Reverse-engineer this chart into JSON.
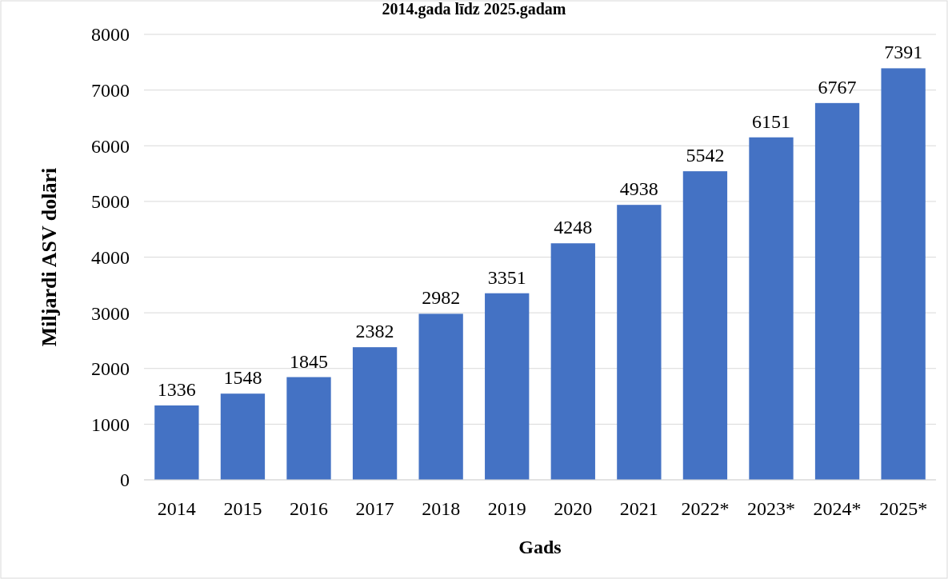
{
  "chart_data": {
    "type": "bar",
    "title": "2014.gada līdz 2025.gadam",
    "xlabel": "Gads",
    "ylabel": "Miljardi ASV dolāri",
    "categories": [
      "2014",
      "2015",
      "2016",
      "2017",
      "2018",
      "2019",
      "2020",
      "2021",
      "2022*",
      "2023*",
      "2024*",
      "2025*"
    ],
    "values": [
      1336,
      1548,
      1845,
      2382,
      2982,
      3351,
      4248,
      4938,
      5542,
      6151,
      6767,
      7391
    ],
    "color": "#4472c4",
    "ylim": [
      0,
      8000
    ],
    "yticks": [
      0,
      1000,
      2000,
      3000,
      4000,
      5000,
      6000,
      7000,
      8000
    ],
    "grid": "y",
    "data_labels": true
  }
}
